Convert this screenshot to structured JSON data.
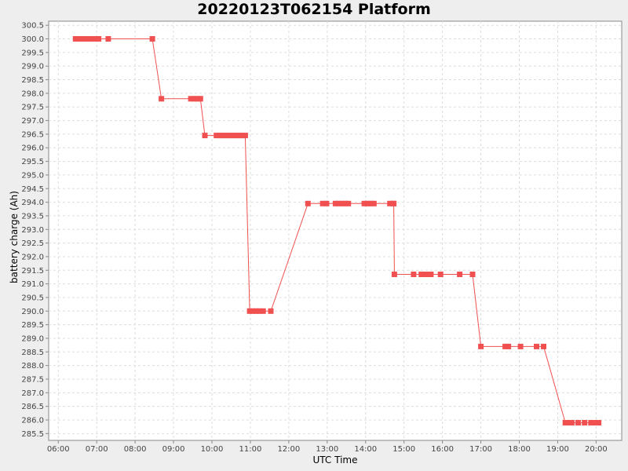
{
  "chart_data": {
    "type": "line",
    "title": "20220123T062154 Platform",
    "xlabel": "UTC Time",
    "ylabel": "battery charge (Ah)",
    "xlim": [
      "06:00",
      "20:00"
    ],
    "x_ticks": [
      "06:00",
      "07:00",
      "08:00",
      "09:00",
      "10:00",
      "11:00",
      "12:00",
      "13:00",
      "14:00",
      "15:00",
      "16:00",
      "17:00",
      "18:00",
      "19:00",
      "20:00"
    ],
    "ylim": [
      285.5,
      300.5
    ],
    "y_ticks": [
      "285.5",
      "286.0",
      "286.5",
      "287.0",
      "287.5",
      "288.0",
      "288.5",
      "289.0",
      "289.5",
      "290.0",
      "290.5",
      "291.0",
      "291.5",
      "292.0",
      "292.5",
      "293.0",
      "293.5",
      "294.0",
      "294.5",
      "295.0",
      "295.5",
      "296.0",
      "296.5",
      "297.0",
      "297.5",
      "298.0",
      "298.5",
      "299.0",
      "299.5",
      "300.0",
      "300.5"
    ],
    "grid": true,
    "series_color": "#f05050",
    "series": [
      {
        "marker": "square",
        "x": [
          "06:27",
          "06:33",
          "06:38",
          "06:43",
          "06:48",
          "06:53",
          "06:58",
          "07:03",
          "07:18",
          "08:27",
          "08:41",
          "09:27",
          "09:32",
          "09:37",
          "09:42",
          "09:49",
          "10:07",
          "10:12",
          "10:17",
          "10:22",
          "10:27",
          "10:32",
          "10:37",
          "10:42",
          "10:47",
          "10:52",
          "10:59",
          "11:04",
          "11:09",
          "11:14",
          "11:20",
          "11:32",
          "12:30",
          "12:53",
          "12:59",
          "13:13",
          "13:18",
          "13:23",
          "13:28",
          "13:33",
          "13:58",
          "14:03",
          "14:08",
          "14:13",
          "14:38",
          "14:43",
          "14:44",
          "14:45",
          "15:15",
          "15:27",
          "15:32",
          "15:37",
          "15:42",
          "15:57",
          "16:27",
          "16:47",
          "17:00",
          "17:38",
          "17:43",
          "18:02",
          "18:27",
          "18:38",
          "19:12",
          "19:17",
          "19:22",
          "19:32",
          "19:42",
          "19:52",
          "19:59",
          "20:04"
        ],
        "y": [
          300.0,
          300.0,
          300.0,
          300.0,
          300.0,
          300.0,
          300.0,
          300.0,
          300.0,
          300.0,
          297.8,
          297.8,
          297.8,
          297.8,
          297.8,
          296.45,
          296.45,
          296.45,
          296.45,
          296.45,
          296.45,
          296.45,
          296.45,
          296.45,
          296.45,
          296.45,
          290.0,
          290.0,
          290.0,
          290.0,
          290.0,
          290.0,
          293.95,
          293.95,
          293.95,
          293.95,
          293.95,
          293.95,
          293.95,
          293.95,
          293.95,
          293.95,
          293.95,
          293.95,
          293.95,
          293.95,
          293.95,
          291.35,
          291.35,
          291.35,
          291.35,
          291.35,
          291.35,
          291.35,
          291.35,
          291.35,
          288.7,
          288.7,
          288.7,
          288.7,
          288.7,
          288.7,
          285.9,
          285.9,
          285.9,
          285.9,
          285.9,
          285.9,
          285.9,
          285.9
        ]
      }
    ]
  }
}
